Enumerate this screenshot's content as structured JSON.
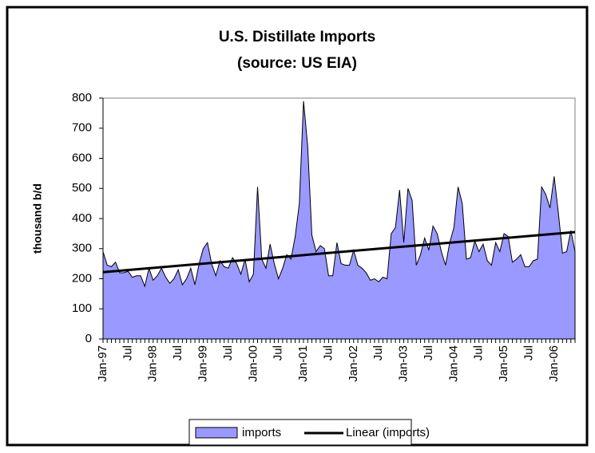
{
  "chart_data": {
    "type": "area",
    "title": "U.S. Distillate Imports",
    "subtitle": "(source: US EIA)",
    "y_label": "thousand b/d",
    "categories": [
      "Jan-97",
      null,
      null,
      null,
      null,
      null,
      "Jul",
      null,
      null,
      null,
      null,
      null,
      "Jan-98",
      null,
      null,
      null,
      null,
      null,
      "Jul",
      null,
      null,
      null,
      null,
      null,
      "Jan-99",
      null,
      null,
      null,
      null,
      null,
      "Jul",
      null,
      null,
      null,
      null,
      null,
      "Jan-00",
      null,
      null,
      null,
      null,
      null,
      "Jul",
      null,
      null,
      null,
      null,
      null,
      "Jan-01",
      null,
      null,
      null,
      null,
      null,
      "Jul",
      null,
      null,
      null,
      null,
      null,
      "Jan-02",
      null,
      null,
      null,
      null,
      null,
      "Jul",
      null,
      null,
      null,
      null,
      null,
      "Jan-03",
      null,
      null,
      null,
      null,
      null,
      "Jul",
      null,
      null,
      null,
      null,
      null,
      "Jan-04",
      null,
      null,
      null,
      null,
      null,
      "Jul",
      null,
      null,
      null,
      null,
      null,
      "Jan-05",
      null,
      null,
      null,
      null,
      null,
      "Jul",
      null,
      null,
      null,
      null,
      null,
      "Jan-06",
      null,
      null,
      null,
      null,
      null
    ],
    "series": [
      {
        "name": "imports",
        "color": "#9999ff",
        "values": [
          290,
          245,
          240,
          255,
          220,
          220,
          225,
          205,
          210,
          210,
          175,
          235,
          195,
          210,
          235,
          205,
          185,
          200,
          230,
          180,
          200,
          235,
          180,
          250,
          300,
          320,
          250,
          210,
          260,
          240,
          235,
          270,
          250,
          215,
          265,
          190,
          215,
          505,
          265,
          235,
          315,
          250,
          200,
          235,
          280,
          265,
          340,
          450,
          790,
          640,
          345,
          290,
          310,
          300,
          210,
          210,
          320,
          250,
          245,
          245,
          295,
          245,
          235,
          220,
          195,
          200,
          190,
          205,
          200,
          350,
          370,
          495,
          320,
          500,
          460,
          245,
          280,
          335,
          295,
          375,
          350,
          290,
          245,
          320,
          370,
          505,
          450,
          265,
          270,
          325,
          290,
          315,
          260,
          245,
          320,
          290,
          350,
          340,
          255,
          265,
          280,
          240,
          240,
          260,
          265,
          505,
          480,
          435,
          540,
          420,
          285,
          290,
          360,
          290
        ]
      }
    ],
    "trend": {
      "name": "Linear (imports)",
      "color": "#000000",
      "values": [
        222,
        355
      ]
    },
    "ylim": [
      0,
      800
    ],
    "yticks": [
      0,
      100,
      200,
      300,
      400,
      500,
      600,
      700,
      800
    ],
    "grid": false
  }
}
